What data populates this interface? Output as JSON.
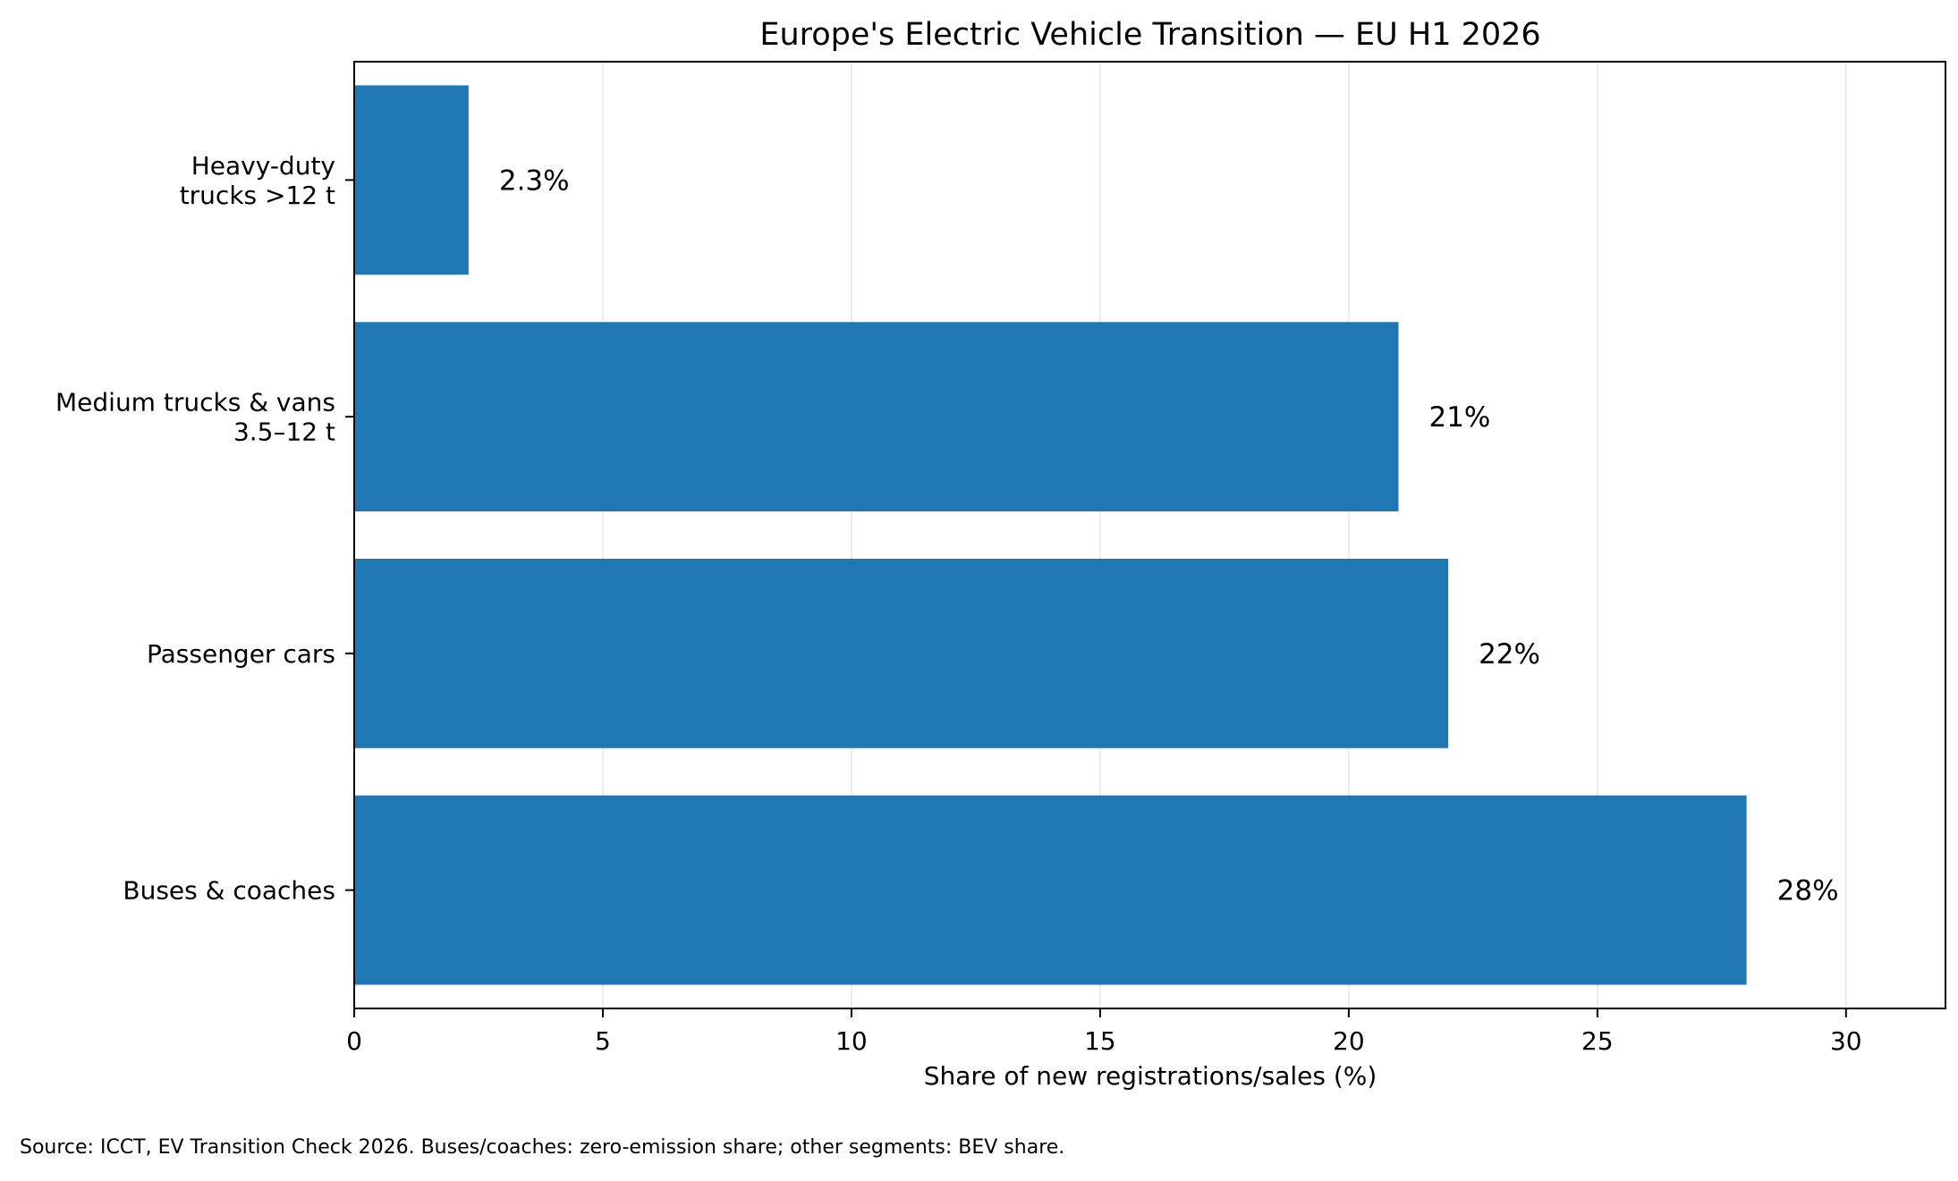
{
  "chart_data": {
    "type": "bar",
    "orientation": "horizontal",
    "title": "Europe's Electric Vehicle Transition — EU H1 2026",
    "xlabel": "Share of new registrations/sales (%)",
    "ylabel": "",
    "xlim": [
      0,
      32
    ],
    "xticks": [
      0,
      5,
      10,
      15,
      20,
      25,
      30
    ],
    "grid": "vertical",
    "legend": "none",
    "bar_color": "#1f77b4",
    "categories": [
      [
        "Heavy-duty",
        "trucks >12 t"
      ],
      [
        "Medium trucks & vans",
        "3.5–12 t"
      ],
      [
        "Passenger cars"
      ],
      [
        "Buses & coaches"
      ]
    ],
    "values": [
      2.3,
      21,
      22,
      28
    ],
    "data_labels": [
      "2.3%",
      "21%",
      "22%",
      "28%"
    ]
  },
  "footnote": "Source: ICCT, EV Transition Check 2026. Buses/coaches: zero-emission share; other segments: BEV share."
}
